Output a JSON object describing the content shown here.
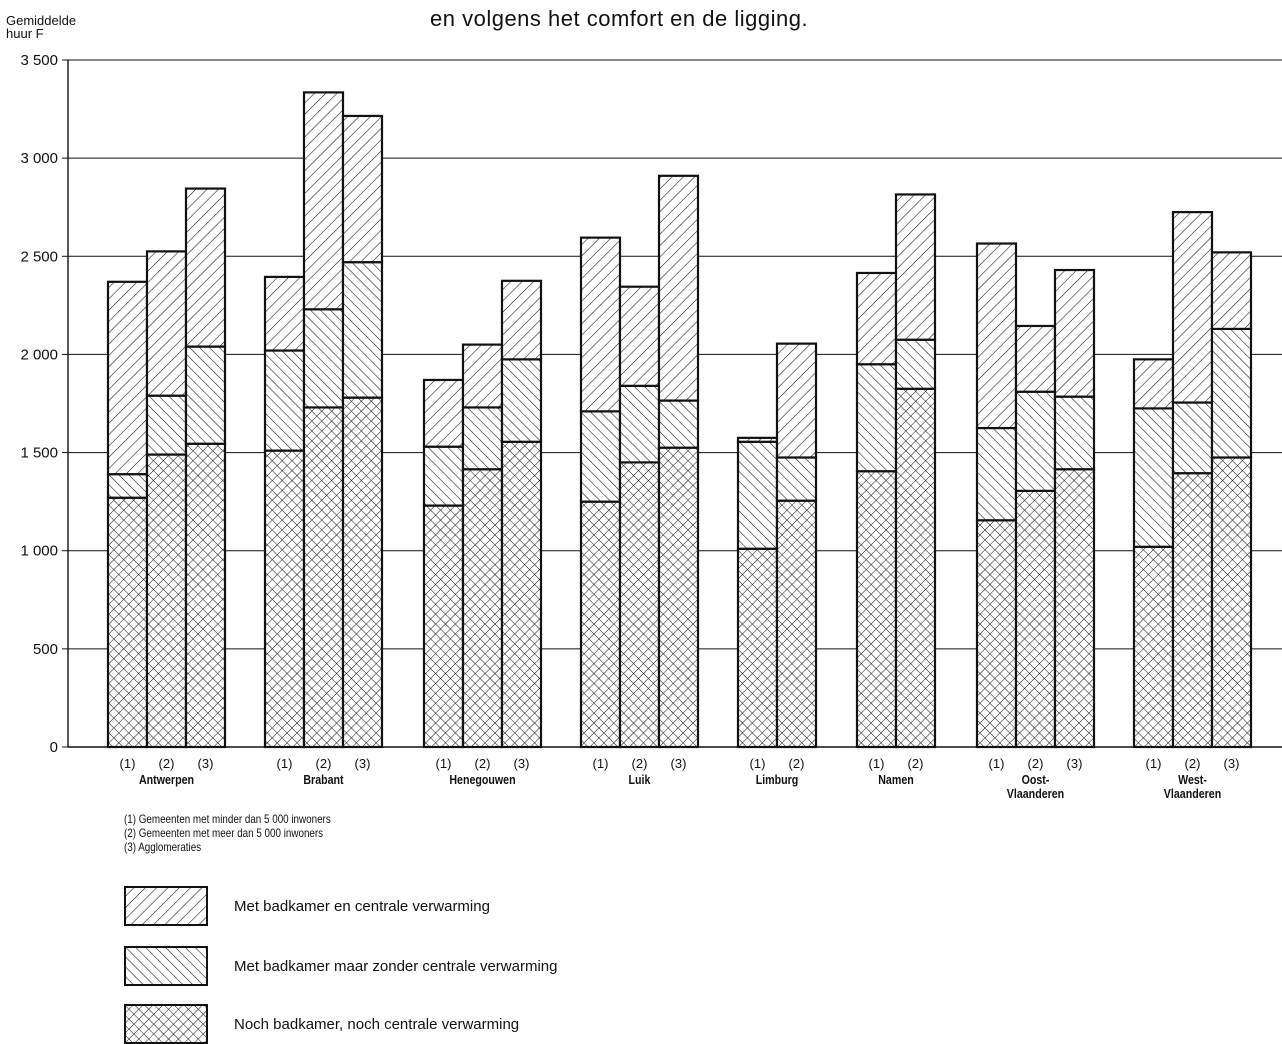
{
  "figure": {
    "title_line": "en volgens het comfort en de ligging.",
    "y_title_lines": [
      "Gemiddelde",
      "huur F"
    ]
  },
  "notes": [
    "(1) Gemeenten met minder dan 5 000 inwoners",
    "(2) Gemeenten met meer dan 5 000 inwoners",
    "(3) Agglomeraties"
  ],
  "colors": {
    "ink": "#111111",
    "background": "#ffffff"
  },
  "chart_data": {
    "type": "bar",
    "stacked": true,
    "ylim": [
      0,
      3500
    ],
    "yticks": [
      0,
      500,
      1000,
      1500,
      2000,
      2500,
      3000,
      3500
    ],
    "ytick_labels": [
      "0",
      "500",
      "1 000",
      "1 500",
      "2 000",
      "2 500",
      "3 000",
      "3 500"
    ],
    "grid": true,
    "legend_position": "bottom-left",
    "legend": [
      {
        "label": "Met badkamer en centrale verwarming",
        "pattern": "diagonal-forward"
      },
      {
        "label": "Met badkamer maar zonder centrale verwarming",
        "pattern": "diagonal-backward"
      },
      {
        "label": "Noch badkamer, noch centrale verwarming",
        "pattern": "crosshatch"
      }
    ],
    "groups": [
      {
        "name_lines": [
          "Antwerpen"
        ],
        "bars": [
          {
            "label": "(1)",
            "noch": 1270,
            "zonder_cv": 1390,
            "met_cv": 2370
          },
          {
            "label": "(2)",
            "noch": 1490,
            "zonder_cv": 1790,
            "met_cv": 2525
          },
          {
            "label": "(3)",
            "noch": 1545,
            "zonder_cv": 2040,
            "met_cv": 2845
          }
        ]
      },
      {
        "name_lines": [
          "Brabant"
        ],
        "bars": [
          {
            "label": "(1)",
            "noch": 1510,
            "zonder_cv": 2020,
            "met_cv": 2395
          },
          {
            "label": "(2)",
            "noch": 1730,
            "zonder_cv": 2230,
            "met_cv": 3335
          },
          {
            "label": "(3)",
            "noch": 1780,
            "zonder_cv": 2470,
            "met_cv": 3215
          }
        ]
      },
      {
        "name_lines": [
          "Henegouwen"
        ],
        "bars": [
          {
            "label": "(1)",
            "noch": 1230,
            "zonder_cv": 1530,
            "met_cv": 1870
          },
          {
            "label": "(2)",
            "noch": 1415,
            "zonder_cv": 1730,
            "met_cv": 2050
          },
          {
            "label": "(3)",
            "noch": 1555,
            "zonder_cv": 1975,
            "met_cv": 2375
          }
        ]
      },
      {
        "name_lines": [
          "Luik"
        ],
        "bars": [
          {
            "label": "(1)",
            "noch": 1250,
            "zonder_cv": 1710,
            "met_cv": 2595
          },
          {
            "label": "(2)",
            "noch": 1450,
            "zonder_cv": 1840,
            "met_cv": 2345
          },
          {
            "label": "(3)",
            "noch": 1525,
            "zonder_cv": 1765,
            "met_cv": 2910
          }
        ]
      },
      {
        "name_lines": [
          "Limburg"
        ],
        "bars": [
          {
            "label": "(1)",
            "noch": 1010,
            "zonder_cv": 1555,
            "met_cv": 1575
          },
          {
            "label": "(2)",
            "noch": 1255,
            "zonder_cv": 1475,
            "met_cv": 2055
          }
        ]
      },
      {
        "name_lines": [
          "Namen"
        ],
        "bars": [
          {
            "label": "(1)",
            "noch": 1405,
            "zonder_cv": 1950,
            "met_cv": 2415
          },
          {
            "label": "(2)",
            "noch": 1825,
            "zonder_cv": 2075,
            "met_cv": 2815
          }
        ]
      },
      {
        "name_lines": [
          "Oost-",
          "Vlaanderen"
        ],
        "bars": [
          {
            "label": "(1)",
            "noch": 1155,
            "zonder_cv": 1625,
            "met_cv": 2565
          },
          {
            "label": "(2)",
            "noch": 1305,
            "zonder_cv": 1810,
            "met_cv": 2145
          },
          {
            "label": "(3)",
            "noch": 1415,
            "zonder_cv": 1785,
            "met_cv": 2430
          }
        ]
      },
      {
        "name_lines": [
          "West-",
          "Vlaanderen"
        ],
        "bars": [
          {
            "label": "(1)",
            "noch": 1020,
            "zonder_cv": 1725,
            "met_cv": 1975
          },
          {
            "label": "(2)",
            "noch": 1395,
            "zonder_cv": 1755,
            "met_cv": 2725
          },
          {
            "label": "(3)",
            "noch": 1475,
            "zonder_cv": 2130,
            "met_cv": 2520
          }
        ]
      }
    ]
  }
}
